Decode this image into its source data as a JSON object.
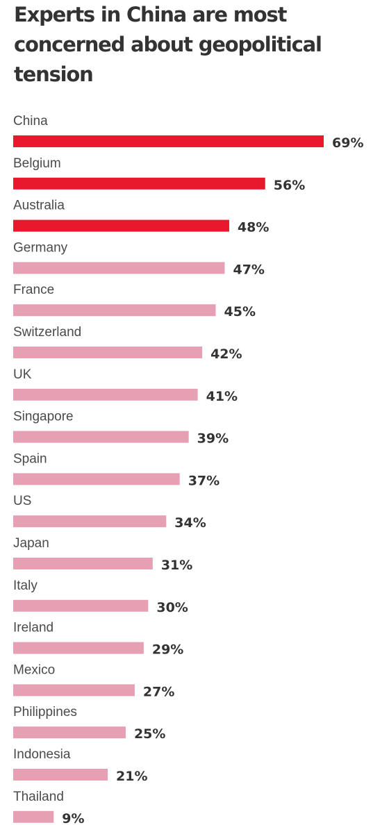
{
  "chart_data": {
    "type": "bar",
    "orientation": "horizontal",
    "title": "Experts in China are most concerned about geopolitical tension",
    "categories": [
      "China",
      "Belgium",
      "Australia",
      "Germany",
      "France",
      "Switzerland",
      "UK",
      "Singapore",
      "Spain",
      "US",
      "Japan",
      "Italy",
      "Ireland",
      "Mexico",
      "Philippines",
      "Indonesia",
      "Thailand"
    ],
    "values": [
      69,
      56,
      48,
      47,
      45,
      42,
      41,
      39,
      37,
      34,
      31,
      30,
      29,
      27,
      25,
      21,
      9
    ],
    "value_labels": [
      "69%",
      "56%",
      "48%",
      "47%",
      "45%",
      "42%",
      "41%",
      "39%",
      "37%",
      "34%",
      "31%",
      "30%",
      "29%",
      "27%",
      "25%",
      "21%",
      "9%"
    ],
    "unit": "%",
    "highlight_top_n": 3,
    "colors": {
      "highlight": "#e8192c",
      "default": "#e79fb3"
    },
    "grid": false,
    "legend": "none"
  }
}
